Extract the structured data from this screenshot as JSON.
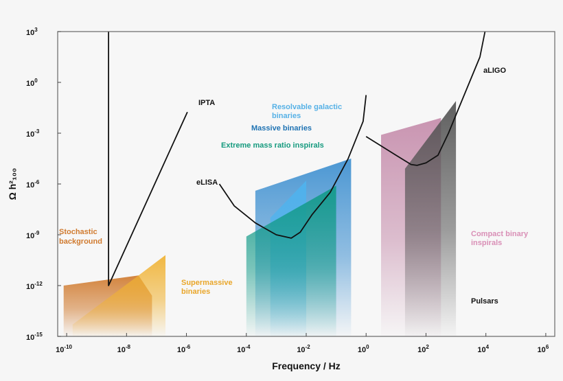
{
  "chart_data": {
    "type": "area",
    "title": "",
    "xlabel": "Frequency / Hz",
    "ylabel": "Ω h²₁₀₀",
    "x_scale": "log",
    "y_scale": "log",
    "xlim_exp": [
      -10.3,
      6.3
    ],
    "ylim_exp": [
      -15,
      3
    ],
    "x_ticks": [
      {
        "base": "10",
        "exp": "-10",
        "value": -10
      },
      {
        "base": "10",
        "exp": "-8",
        "value": -8
      },
      {
        "base": "10",
        "exp": "-6",
        "value": -6
      },
      {
        "base": "10",
        "exp": "-4",
        "value": -4
      },
      {
        "base": "10",
        "exp": "-2",
        "value": -2
      },
      {
        "base": "10",
        "exp": "0",
        "value": 0
      },
      {
        "base": "10",
        "exp": "2",
        "value": 2
      },
      {
        "base": "10",
        "exp": "4",
        "value": 4
      },
      {
        "base": "10",
        "exp": "6",
        "value": 6
      }
    ],
    "y_ticks": [
      {
        "base": "10",
        "exp": "3",
        "value": 3
      },
      {
        "base": "10",
        "exp": "0",
        "value": 0
      },
      {
        "base": "10",
        "exp": "-3",
        "value": -3
      },
      {
        "base": "10",
        "exp": "-6",
        "value": -6
      },
      {
        "base": "10",
        "exp": "-9",
        "value": -9
      },
      {
        "base": "10",
        "exp": "-12",
        "value": -12
      },
      {
        "base": "10",
        "exp": "-15",
        "value": -15
      }
    ],
    "regions": [
      {
        "name": "Stochastic background",
        "color": "#d07a2e",
        "points": [
          [
            -10.1,
            -15
          ],
          [
            -10.1,
            -12
          ],
          [
            -7.6,
            -11.4
          ],
          [
            -7.15,
            -12.6
          ],
          [
            -7.15,
            -15
          ]
        ]
      },
      {
        "name": "Supermassive binaries",
        "color": "#f0b232",
        "points": [
          [
            -9.8,
            -15
          ],
          [
            -9.8,
            -14.3
          ],
          [
            -7.6,
            -11.4
          ],
          [
            -6.7,
            -10.2
          ],
          [
            -6.7,
            -15
          ]
        ]
      },
      {
        "name": "Massive binaries",
        "color": "#3d8fd0",
        "points": [
          [
            -3.7,
            -15
          ],
          [
            -3.7,
            -6.4
          ],
          [
            -0.5,
            -4.5
          ],
          [
            -0.5,
            -15
          ]
        ]
      },
      {
        "name": "Resolvable galactic binaries",
        "color": "#4eb3ee",
        "points": [
          [
            -3.2,
            -15
          ],
          [
            -3.2,
            -8
          ],
          [
            -2.0,
            -5.8
          ],
          [
            -2.0,
            -15
          ]
        ]
      },
      {
        "name": "Extreme mass ratio inspirals",
        "color": "#129a88",
        "points": [
          [
            -4.0,
            -15
          ],
          [
            -4.0,
            -9.1
          ],
          [
            -1.0,
            -6.1
          ],
          [
            -1.0,
            -15
          ]
        ]
      },
      {
        "name": "Compact binary inspirals",
        "color": "#c58cab",
        "points": [
          [
            0.5,
            -15
          ],
          [
            0.5,
            -3.1
          ],
          [
            2.5,
            -2.1
          ],
          [
            2.5,
            -15
          ]
        ]
      },
      {
        "name": "Pulsars",
        "color": "#525252",
        "points": [
          [
            1.3,
            -15
          ],
          [
            1.3,
            -5.1
          ],
          [
            3.0,
            -1.1
          ],
          [
            3.0,
            -15
          ]
        ]
      }
    ],
    "curves": [
      {
        "name": "IPTA",
        "points": [
          [
            -8.6,
            3
          ],
          [
            -8.6,
            -12
          ],
          [
            -5.97,
            -1.75
          ]
        ]
      },
      {
        "name": "eLISA",
        "points": [
          [
            -4.9,
            -6.0
          ],
          [
            -4.4,
            -7.3
          ],
          [
            -3.7,
            -8.3
          ],
          [
            -3.0,
            -9.0
          ],
          [
            -2.5,
            -9.2
          ],
          [
            -2.2,
            -8.85
          ],
          [
            -1.8,
            -7.8
          ],
          [
            -1.2,
            -6.5
          ],
          [
            -0.6,
            -4.5
          ],
          [
            -0.1,
            -2.3
          ],
          [
            0.0,
            -0.75
          ]
        ]
      },
      {
        "name": "aLIGO",
        "points": [
          [
            0.0,
            -3.2
          ],
          [
            0.5,
            -3.75
          ],
          [
            1.0,
            -4.3
          ],
          [
            1.5,
            -4.85
          ],
          [
            1.7,
            -4.9
          ],
          [
            2.0,
            -4.75
          ],
          [
            2.4,
            -4.3
          ],
          [
            2.75,
            -3.0
          ],
          [
            3.1,
            -1.5
          ],
          [
            3.45,
            0.0
          ],
          [
            3.8,
            1.5
          ],
          [
            3.97,
            3
          ]
        ]
      }
    ],
    "labels": {
      "ipta": "IPTA",
      "elisa": "eLISA",
      "aligo": "aLIGO",
      "resolvable_1": "Resolvable galactic",
      "resolvable_2": "binaries",
      "massive": "Massive binaries",
      "emri": "Extreme mass ratio inspirals",
      "stochastic_1": "Stochastic",
      "stochastic_2": "background",
      "supermassive_1": "Supermassive",
      "supermassive_2": "binaries",
      "compact_1": "Compact binary",
      "compact_2": "inspirals",
      "pulsars": "Pulsars"
    },
    "colors": {
      "background": "#f6f6f6",
      "plot_bg": "#f7f7f7",
      "curve": "#111111",
      "stochastic_text": "#d07a2e",
      "supermassive_text": "#e9a62a",
      "resolvable_text": "#56b1e6",
      "massive_text": "#1f73b3",
      "emri_text": "#159a7e",
      "compact_text": "#d98fb6",
      "pulsars_text": "#111111"
    },
    "grid": false,
    "legend": "none"
  }
}
